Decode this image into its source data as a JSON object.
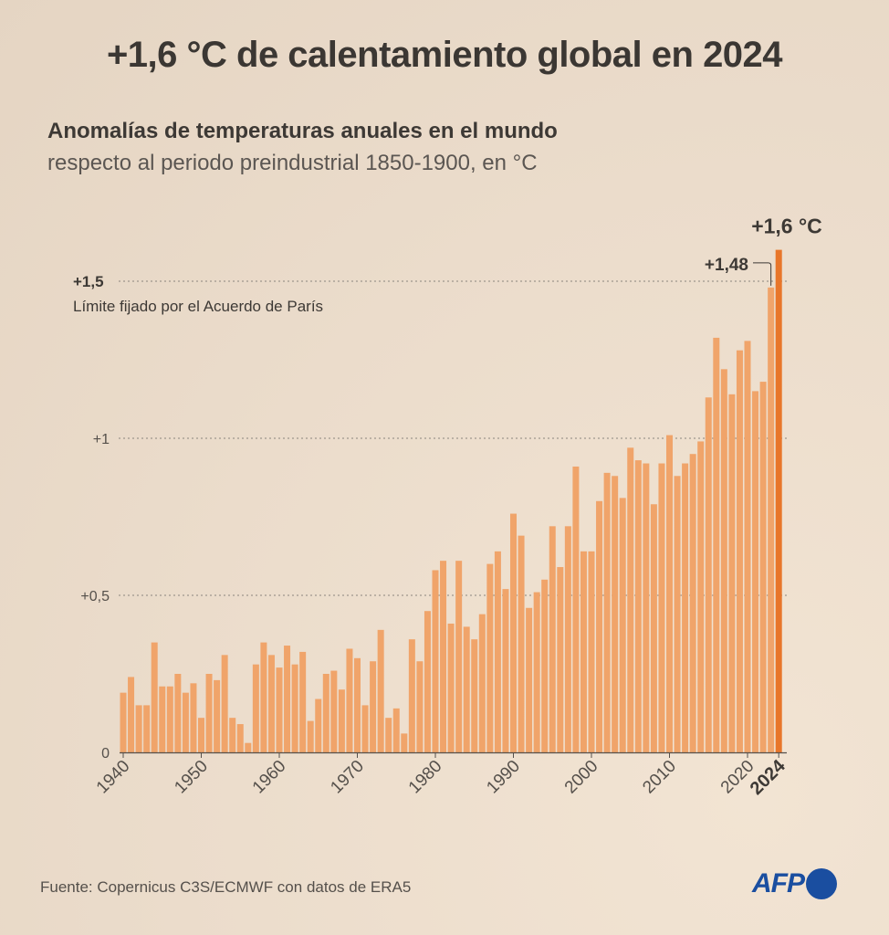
{
  "header": {
    "title": "+1,6 °C de calentamiento global en 2024",
    "subtitle": "Anomalías de temperaturas anuales en el mundo",
    "subtitle2": "respecto al periodo preindustrial 1850-1900, en °C"
  },
  "footer": {
    "source": "Fuente: Copernicus C3S/ECMWF con datos de ERA5",
    "logo_text": "AFP"
  },
  "colors": {
    "bar": "#f0a46a",
    "highlight": "#e8762a",
    "text": "#3d3935",
    "axis": "#55504b",
    "grid": "#8a847d"
  },
  "chart_data": {
    "type": "bar",
    "title": "+1,6 °C de calentamiento global en 2024",
    "xlabel": "",
    "ylabel": "",
    "ylim": [
      0,
      1.6
    ],
    "yticks": [
      {
        "value": 0,
        "label": "0"
      },
      {
        "value": 0.5,
        "label": "+0,5"
      },
      {
        "value": 1.0,
        "label": "+1"
      },
      {
        "value": 1.5,
        "label": "+1,5"
      }
    ],
    "xtick_labels": [
      "1940",
      "1950",
      "1960",
      "1970",
      "1980",
      "1990",
      "2000",
      "2010",
      "2020",
      "2024"
    ],
    "reference_line": {
      "value": 1.5,
      "label": "+1,5",
      "note": "Límite fijado por el Acuerdo de París"
    },
    "annotations": [
      {
        "year": 2023,
        "label": "+1,48"
      },
      {
        "year": 2024,
        "label": "+1,6 °C"
      }
    ],
    "years": [
      1940,
      1941,
      1942,
      1943,
      1944,
      1945,
      1946,
      1947,
      1948,
      1949,
      1950,
      1951,
      1952,
      1953,
      1954,
      1955,
      1956,
      1957,
      1958,
      1959,
      1960,
      1961,
      1962,
      1963,
      1964,
      1965,
      1966,
      1967,
      1968,
      1969,
      1970,
      1971,
      1972,
      1973,
      1974,
      1975,
      1976,
      1977,
      1978,
      1979,
      1980,
      1981,
      1982,
      1983,
      1984,
      1985,
      1986,
      1987,
      1988,
      1989,
      1990,
      1991,
      1992,
      1993,
      1994,
      1995,
      1996,
      1997,
      1998,
      1999,
      2000,
      2001,
      2002,
      2003,
      2004,
      2005,
      2006,
      2007,
      2008,
      2009,
      2010,
      2011,
      2012,
      2013,
      2014,
      2015,
      2016,
      2017,
      2018,
      2019,
      2020,
      2021,
      2022,
      2023,
      2024
    ],
    "values": [
      0.19,
      0.24,
      0.15,
      0.15,
      0.35,
      0.21,
      0.21,
      0.25,
      0.19,
      0.22,
      0.11,
      0.25,
      0.23,
      0.31,
      0.11,
      0.09,
      0.03,
      0.28,
      0.35,
      0.31,
      0.27,
      0.34,
      0.28,
      0.32,
      0.1,
      0.17,
      0.25,
      0.26,
      0.2,
      0.33,
      0.3,
      0.15,
      0.29,
      0.39,
      0.11,
      0.14,
      0.06,
      0.36,
      0.29,
      0.45,
      0.58,
      0.61,
      0.41,
      0.61,
      0.4,
      0.36,
      0.44,
      0.6,
      0.64,
      0.52,
      0.76,
      0.69,
      0.46,
      0.51,
      0.55,
      0.72,
      0.59,
      0.72,
      0.91,
      0.64,
      0.64,
      0.8,
      0.89,
      0.88,
      0.81,
      0.97,
      0.93,
      0.92,
      0.79,
      0.92,
      1.01,
      0.88,
      0.92,
      0.95,
      0.99,
      1.13,
      1.32,
      1.22,
      1.14,
      1.28,
      1.31,
      1.15,
      1.18,
      1.48,
      1.6
    ]
  }
}
